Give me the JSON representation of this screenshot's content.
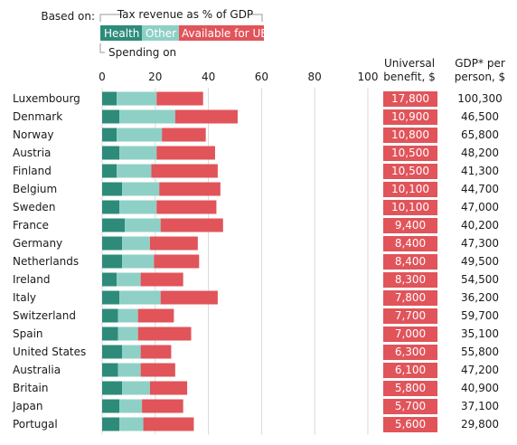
{
  "chart_data": {
    "type": "bar",
    "stacked": true,
    "orientation": "horizontal",
    "legend": {
      "based_on_label": "Based on:",
      "tax_revenue_label": "Tax revenue as % of GDP",
      "spending_on_label": "Spending on",
      "items": [
        {
          "name": "Health",
          "color": "#2e8b7a"
        },
        {
          "name": "Other",
          "color": "#8fd0c6"
        },
        {
          "name": "Available for UBI",
          "color": "#e0545a"
        }
      ]
    },
    "xlim": [
      0,
      100
    ],
    "xticks": [
      "0",
      "20",
      "40",
      "60",
      "80",
      "100"
    ],
    "grid": true,
    "column_headers": {
      "benefit_line1": "Universal",
      "benefit_line2": "benefit, $",
      "gdp_line1": "GDP* per",
      "gdp_line2": "person, $"
    },
    "categories": [
      "Luxembourg",
      "Denmark",
      "Norway",
      "Austria",
      "Finland",
      "Belgium",
      "Sweden",
      "France",
      "Germany",
      "Netherlands",
      "Ireland",
      "Italy",
      "Switzerland",
      "Spain",
      "United States",
      "Australia",
      "Britain",
      "Japan",
      "Portugal"
    ],
    "series": [
      {
        "name": "Health",
        "color": "#2e8b7a",
        "values": [
          5.5,
          6.5,
          5.5,
          6.5,
          5.5,
          7.5,
          6.5,
          8.5,
          7.5,
          7.5,
          5.5,
          6.5,
          6,
          6,
          7.5,
          6,
          7.5,
          6.5,
          6.5
        ]
      },
      {
        "name": "Other",
        "color": "#8fd0c6",
        "values": [
          15,
          21,
          17,
          14,
          13,
          14,
          14,
          13.5,
          10.5,
          12,
          9,
          15.5,
          7.5,
          7.5,
          7,
          8.5,
          10.5,
          8.5,
          9
        ]
      },
      {
        "name": "Available for UBI",
        "color": "#e0545a",
        "values": [
          17.5,
          23.5,
          16.5,
          22,
          25,
          23,
          22.5,
          23.5,
          18,
          17,
          16,
          21.5,
          13.5,
          20,
          11.5,
          13,
          14,
          15.5,
          19
        ]
      }
    ],
    "universal_benefit": [
      "17,800",
      "10,900",
      "10,800",
      "10,500",
      "10,500",
      "10,100",
      "10,100",
      "9,400",
      "8,400",
      "8,400",
      "8,300",
      "7,800",
      "7,700",
      "7,000",
      "6,300",
      "6,100",
      "5,800",
      "5,700",
      "5,600"
    ],
    "gdp_per_person": [
      "100,300",
      "46,500",
      "65,800",
      "48,200",
      "41,300",
      "44,700",
      "47,000",
      "40,200",
      "47,300",
      "49,500",
      "54,500",
      "36,200",
      "59,700",
      "35,100",
      "55,800",
      "47,200",
      "40,900",
      "37,100",
      "29,800"
    ],
    "benefit_box_color": "#e0545a"
  }
}
